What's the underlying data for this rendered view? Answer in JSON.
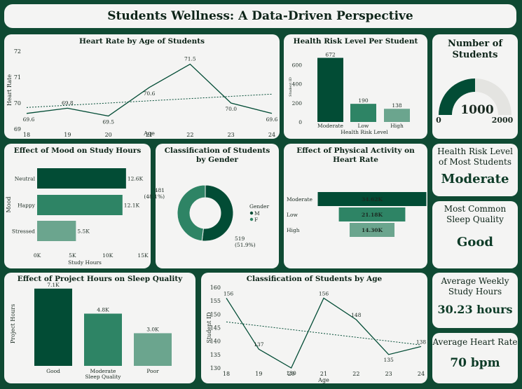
{
  "header": {
    "title": "Students Wellness: A Data-Driven Perspective"
  },
  "colors": {
    "dark": "#024c35",
    "mid": "#2e8465",
    "light": "#6ba58e",
    "background": "#0f4a33",
    "card": "#f4f4f3"
  },
  "heart_rate_card": {
    "title": "Heart Rate by Age of Students",
    "chart_data": {
      "type": "line",
      "title": "Heart Rate by Age of Students",
      "xlabel": "Age",
      "ylabel": "Heart Rate",
      "x": [
        18,
        19,
        20,
        21,
        22,
        23,
        24
      ],
      "values": [
        69.6,
        69.8,
        69.5,
        70.6,
        71.5,
        70.0,
        69.6
      ],
      "data_labels": [
        "69.6",
        "69.8",
        "69.5",
        "70.6",
        "71.5",
        "70.0",
        "69.6"
      ],
      "yticks": [
        "69",
        "70",
        "71",
        "72"
      ],
      "ylim": [
        69,
        72
      ],
      "trendline": true
    }
  },
  "risk_card": {
    "title": "Health Risk Level Per Student",
    "chart_data": {
      "type": "bar",
      "title": "Health Risk Level Per Student",
      "xlabel": "Health Risk Level",
      "ylabel": "Student ID",
      "categories": [
        "Moderate",
        "Low",
        "High"
      ],
      "values": [
        672,
        190,
        138
      ],
      "data_labels": [
        "672",
        "190",
        "138"
      ],
      "yticks": [
        "0",
        "200",
        "400",
        "600"
      ],
      "ylim": [
        0,
        720
      ]
    }
  },
  "students_card": {
    "title": "Number of Students",
    "value": "1000",
    "min_label": "0",
    "max_label": "2000",
    "chart_data": {
      "type": "gauge",
      "value": 1000,
      "min": 0,
      "max": 2000
    }
  },
  "mood_card": {
    "title": "Effect of Mood on Study Hours",
    "chart_data": {
      "type": "bar",
      "orientation": "horizontal",
      "title": "Effect of Mood on Study Hours",
      "xlabel": "Study Hours",
      "ylabel": "Mood",
      "categories": [
        "Neutral",
        "Happy",
        "Stressed"
      ],
      "values": [
        12600,
        12100,
        5500
      ],
      "data_labels": [
        "12.6K",
        "12.1K",
        "5.5K"
      ],
      "xticks": [
        "0K",
        "5K",
        "10K",
        "15K"
      ],
      "xlim": [
        0,
        15000
      ]
    }
  },
  "gender_card": {
    "title": "Classification of Students by Gender",
    "legend_title": "Gender",
    "chart_data": {
      "type": "pie",
      "donut": true,
      "title": "Classification of Students by Gender",
      "categories": [
        "M",
        "F"
      ],
      "values": [
        519,
        481
      ],
      "data_labels": [
        {
          "count": "519",
          "pct": "(51.9%)"
        },
        {
          "count": "481",
          "pct": "(48.1%)"
        }
      ],
      "legend_position": "right"
    }
  },
  "activity_card": {
    "title": "Effect of Physical Activity on Heart Rate",
    "chart_data": {
      "type": "bar",
      "orientation": "horizontal",
      "centered": true,
      "title": "Effect of Physical Activity on Heart Rate",
      "categories": [
        "Moderate",
        "Low",
        "High"
      ],
      "values": [
        34620,
        21180,
        14300
      ],
      "data_labels": [
        "34.62K",
        "21.18K",
        "14.30K"
      ]
    }
  },
  "risk_kpi": {
    "title": "Health Risk Level of Most Students",
    "value": "Moderate"
  },
  "sleep_kpi": {
    "title": "Most Common Sleep Quality",
    "value": "Good"
  },
  "project_card": {
    "title": "Effect of Project Hours on Sleep Quality",
    "chart_data": {
      "type": "bar",
      "title": "Effect of Project Hours on Sleep Quality",
      "xlabel": "Sleep Quality",
      "ylabel": "Project Hours",
      "categories": [
        "Good",
        "Moderate",
        "Poor"
      ],
      "values": [
        7100,
        4800,
        3000
      ],
      "data_labels": [
        "7.1K",
        "4.8K",
        "3.0K"
      ],
      "ylim": [
        0,
        7600
      ]
    }
  },
  "age_card": {
    "title": "Classification of Students by Age",
    "chart_data": {
      "type": "line",
      "title": "Classification of Students by Age",
      "xlabel": "Age",
      "ylabel": "Student ID",
      "x": [
        18,
        19,
        20,
        21,
        22,
        23,
        24
      ],
      "values": [
        156,
        137,
        130,
        156,
        148,
        135,
        138
      ],
      "data_labels": [
        "156",
        "137",
        "130",
        "156",
        "148",
        "135",
        "138"
      ],
      "yticks": [
        "130",
        "135",
        "140",
        "145",
        "150",
        "155",
        "160"
      ],
      "ylim": [
        130,
        160
      ],
      "trendline": true
    }
  },
  "study_kpi": {
    "title": "Average Weekly Study Hours",
    "value": "30.23 hours"
  },
  "hr_kpi": {
    "title": "Average Heart Rate",
    "value": "70 bpm"
  }
}
